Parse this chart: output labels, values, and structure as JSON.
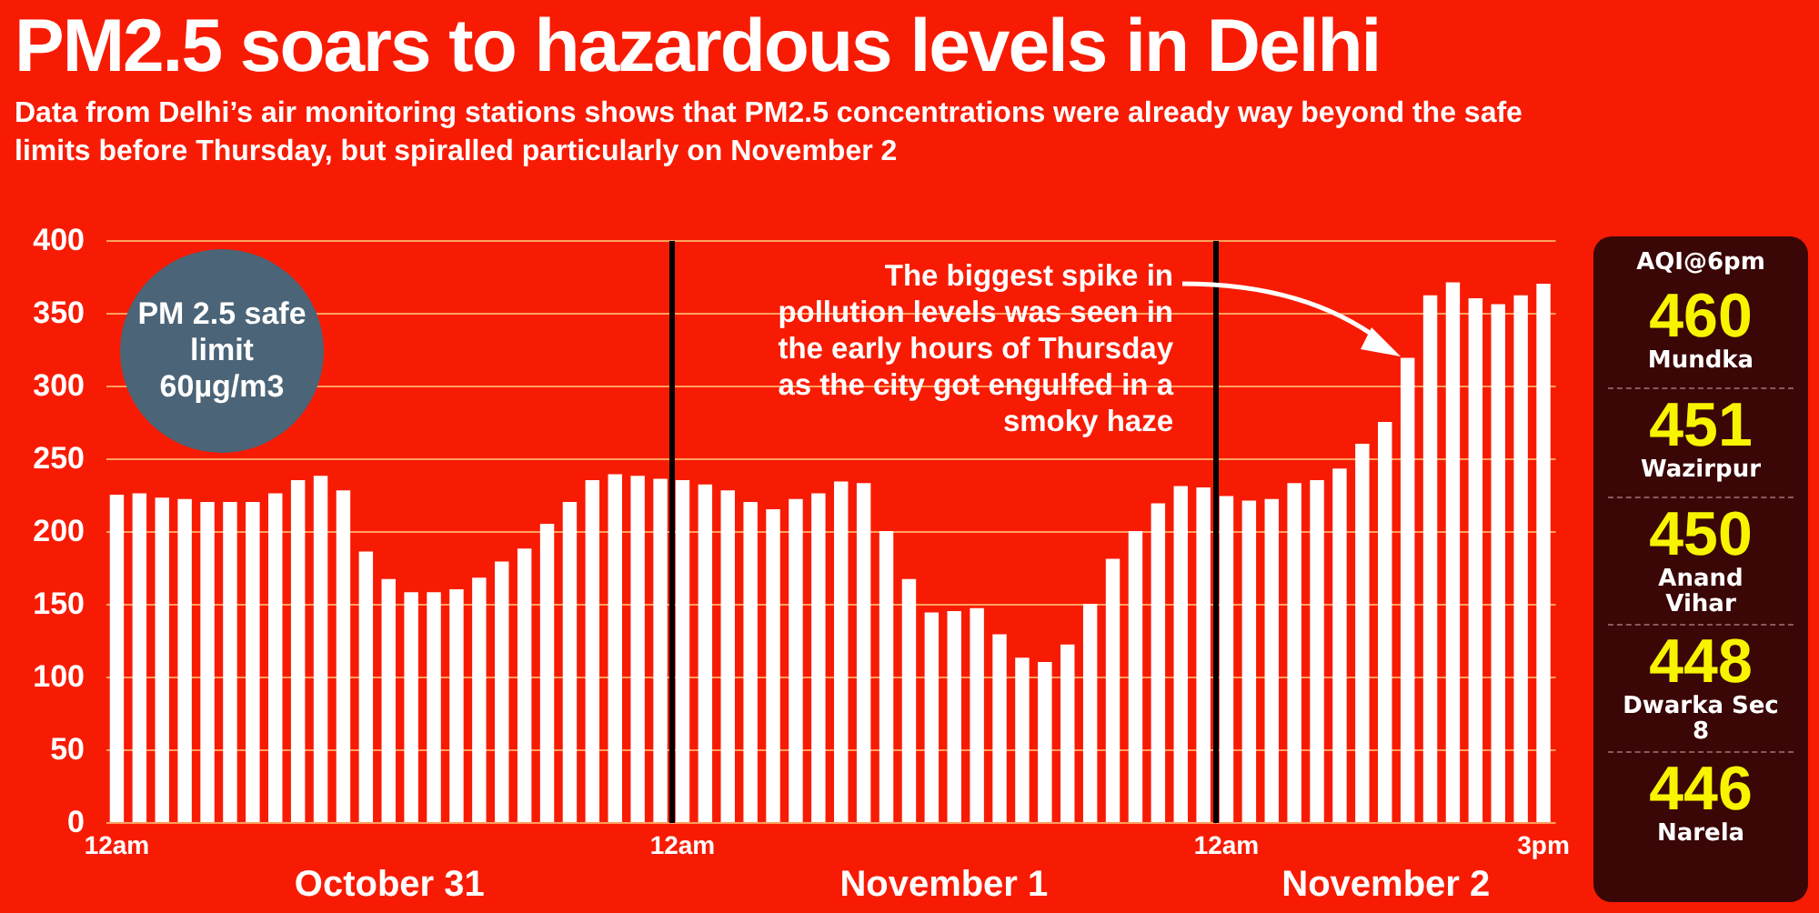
{
  "chart_data": [
    {
      "type": "bar",
      "title": "PM2.5 soars to hazardous levels in Delhi",
      "subtitle": "Data from Delhi’s air monitoring stations shows that PM2.5 concentrations were already way beyond the safe limits before Thursday, but spiralled particularly on November 2",
      "xlabel": "October 31",
      "categories": [
        "12am",
        null,
        null,
        null,
        null,
        null,
        null,
        null,
        null,
        null,
        null,
        null,
        null,
        null,
        null,
        null,
        null,
        null,
        null,
        null,
        null,
        null,
        null,
        null,
        null
      ],
      "values": [
        225,
        226,
        223,
        222,
        220,
        220,
        220,
        226,
        235,
        238,
        228,
        186,
        167,
        158,
        158,
        160,
        168,
        179,
        188,
        205,
        220,
        235,
        239,
        238,
        236
      ],
      "color": "#ffffff",
      "ylim": [
        0,
        400
      ],
      "yticks": [
        0,
        50,
        100,
        150,
        200,
        250,
        300,
        350,
        400
      ],
      "grid": "y",
      "annotations": [
        "PM 2.5 safe limit 60µg/m3"
      ]
    },
    {
      "type": "bar",
      "xlabel": "November 1",
      "categories": [
        "12am",
        null,
        null,
        null,
        null,
        null,
        null,
        null,
        null,
        null,
        null,
        null,
        null,
        null,
        null,
        null,
        null,
        null,
        null,
        null,
        null,
        null,
        null,
        null
      ],
      "values": [
        235,
        232,
        228,
        220,
        215,
        222,
        226,
        234,
        233,
        200,
        167,
        144,
        145,
        147,
        129,
        113,
        110,
        122,
        150,
        181,
        200,
        219,
        231,
        230
      ],
      "color": "#ffffff",
      "ylim": [
        0,
        400
      ],
      "yticks": [
        0,
        50,
        100,
        150,
        200,
        250,
        300,
        350,
        400
      ],
      "grid": "y",
      "tick_labels": "x",
      "annotations": [
        "The biggest spike in pollution levels was seen in the early hours of Thursday as the city got engulfed in a smoky haze"
      ]
    },
    {
      "type": "bar",
      "xlabel": "November 2",
      "categories": [
        "12am",
        null,
        null,
        null,
        null,
        null,
        null,
        null,
        null,
        null,
        null,
        null,
        null,
        null,
        "3pm"
      ],
      "values": [
        224,
        221,
        222,
        233,
        235,
        243,
        260,
        275,
        319,
        362,
        371,
        360,
        356,
        362,
        370
      ],
      "color": "#ffffff",
      "ylim": [
        0,
        400
      ],
      "yticks": [
        0,
        50,
        100,
        150,
        200,
        250,
        300,
        350,
        400
      ],
      "grid": "y",
      "tick_labels": "x"
    },
    {
      "type": "other",
      "title": "AQI@6pm",
      "annotations": [
        "460",
        "Mundka",
        "451",
        "Wazirpur",
        "450",
        "Anand Vihar",
        "448",
        "Dwarka Sec 8",
        "446",
        "Narela"
      ]
    }
  ]
}
